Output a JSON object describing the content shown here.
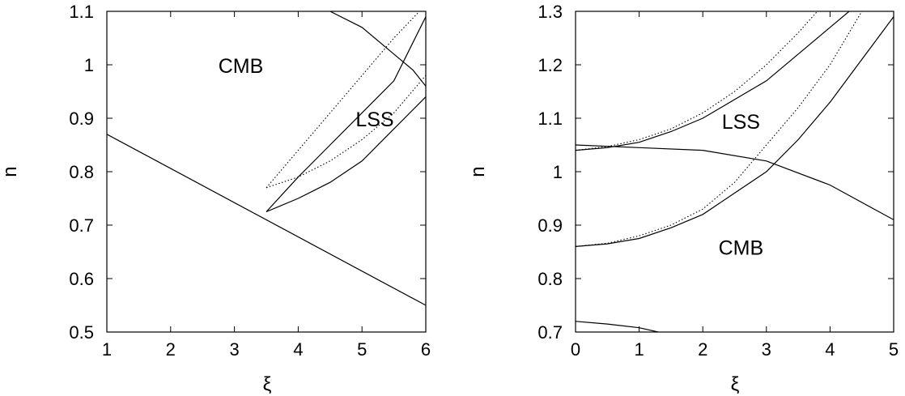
{
  "chart_data": [
    {
      "type": "line",
      "title": "",
      "xlabel": "ξ",
      "ylabel": "n",
      "xlim": [
        1,
        6
      ],
      "ylim": [
        0.5,
        1.1
      ],
      "xticks": [
        1,
        2,
        3,
        4,
        5,
        6
      ],
      "xtick_labels": [
        "1",
        "2",
        "3",
        "4",
        "5",
        "6"
      ],
      "yticks": [
        0.5,
        0.6,
        0.7,
        0.8,
        0.9,
        1.0,
        1.1
      ],
      "ytick_labels": [
        "0.5",
        "0.6",
        "0.7",
        "0.8",
        "0.9",
        "1",
        "1.1"
      ],
      "grid": false,
      "annotations": [
        {
          "text": "CMB",
          "x": 3.1,
          "y": 0.985
        },
        {
          "text": "LSS",
          "x": 5.2,
          "y": 0.885
        }
      ],
      "series": [
        {
          "style": "solid",
          "points": [
            [
              1,
              0.87
            ],
            [
              6,
              0.55
            ]
          ]
        },
        {
          "style": "solid",
          "points": [
            [
              4.5,
              1.1
            ],
            [
              5.0,
              1.07
            ],
            [
              5.5,
              1.02
            ],
            [
              5.8,
              0.99
            ],
            [
              6.0,
              0.96
            ]
          ]
        },
        {
          "style": "solid",
          "points": [
            [
              3.5,
              0.725
            ],
            [
              4.0,
              0.79
            ],
            [
              4.5,
              0.85
            ],
            [
              5.0,
              0.91
            ],
            [
              5.5,
              0.97
            ],
            [
              6.0,
              1.09
            ]
          ]
        },
        {
          "style": "solid",
          "points": [
            [
              3.5,
              0.725
            ],
            [
              4.0,
              0.75
            ],
            [
              4.5,
              0.78
            ],
            [
              5.0,
              0.82
            ],
            [
              5.5,
              0.88
            ],
            [
              6.0,
              0.94
            ]
          ]
        },
        {
          "style": "dotted",
          "points": [
            [
              3.5,
              0.77
            ],
            [
              4.0,
              0.84
            ],
            [
              4.5,
              0.91
            ],
            [
              5.0,
              0.98
            ],
            [
              5.5,
              1.05
            ],
            [
              5.9,
              1.1
            ]
          ]
        },
        {
          "style": "dotted",
          "points": [
            [
              3.5,
              0.77
            ],
            [
              4.0,
              0.79
            ],
            [
              4.5,
              0.82
            ],
            [
              5.0,
              0.86
            ],
            [
              5.5,
              0.91
            ],
            [
              6.0,
              0.98
            ]
          ]
        }
      ]
    },
    {
      "type": "line",
      "title": "",
      "xlabel": "ξ",
      "ylabel": "n",
      "xlim": [
        0,
        5
      ],
      "ylim": [
        0.7,
        1.3
      ],
      "xticks": [
        0,
        1,
        2,
        3,
        4,
        5
      ],
      "xtick_labels": [
        "0",
        "1",
        "2",
        "3",
        "4",
        "5"
      ],
      "yticks": [
        0.7,
        0.8,
        0.9,
        1.0,
        1.1,
        1.2,
        1.3
      ],
      "ytick_labels": [
        "0.7",
        "0.8",
        "0.9",
        "1",
        "1.1",
        "1.2",
        "1.3"
      ],
      "grid": false,
      "annotations": [
        {
          "text": "LSS",
          "x": 2.6,
          "y": 1.08
        },
        {
          "text": "CMB",
          "x": 2.6,
          "y": 0.845
        }
      ],
      "series": [
        {
          "style": "solid",
          "points": [
            [
              0,
              1.05
            ],
            [
              1,
              1.045
            ],
            [
              2,
              1.04
            ],
            [
              3,
              1.02
            ],
            [
              4,
              0.975
            ],
            [
              5,
              0.91
            ]
          ]
        },
        {
          "style": "solid",
          "points": [
            [
              0,
              1.04
            ],
            [
              0.5,
              1.045
            ],
            [
              1,
              1.055
            ],
            [
              1.5,
              1.075
            ],
            [
              2,
              1.1
            ],
            [
              2.5,
              1.135
            ],
            [
              3,
              1.17
            ],
            [
              3.5,
              1.22
            ],
            [
              4,
              1.27
            ],
            [
              4.3,
              1.3
            ]
          ]
        },
        {
          "style": "dotted",
          "points": [
            [
              0,
              1.04
            ],
            [
              0.5,
              1.047
            ],
            [
              1,
              1.06
            ],
            [
              1.5,
              1.08
            ],
            [
              2,
              1.11
            ],
            [
              2.5,
              1.15
            ],
            [
              3,
              1.2
            ],
            [
              3.5,
              1.26
            ],
            [
              3.8,
              1.3
            ]
          ]
        },
        {
          "style": "solid",
          "points": [
            [
              0,
              0.86
            ],
            [
              0.5,
              0.865
            ],
            [
              1,
              0.875
            ],
            [
              1.5,
              0.895
            ],
            [
              2,
              0.92
            ],
            [
              2.5,
              0.96
            ],
            [
              3,
              1.0
            ],
            [
              3.5,
              1.06
            ],
            [
              4,
              1.13
            ],
            [
              4.5,
              1.21
            ],
            [
              5,
              1.29
            ]
          ]
        },
        {
          "style": "dotted",
          "points": [
            [
              0,
              0.86
            ],
            [
              0.5,
              0.866
            ],
            [
              1,
              0.88
            ],
            [
              1.5,
              0.9
            ],
            [
              2,
              0.93
            ],
            [
              2.5,
              0.98
            ],
            [
              3,
              1.05
            ],
            [
              3.5,
              1.12
            ],
            [
              4,
              1.2
            ],
            [
              4.5,
              1.3
            ]
          ]
        },
        {
          "style": "solid",
          "points": [
            [
              0,
              0.72
            ],
            [
              0.5,
              0.715
            ],
            [
              1,
              0.708
            ],
            [
              1.3,
              0.7
            ]
          ]
        }
      ]
    }
  ]
}
